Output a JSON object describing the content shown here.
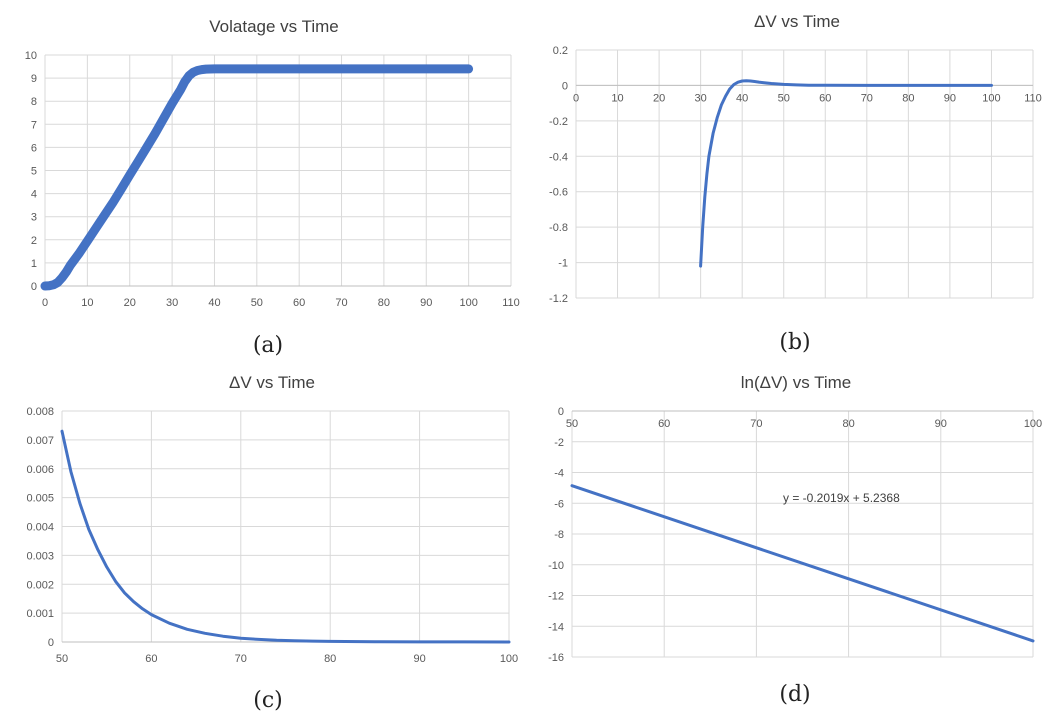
{
  "colors": {
    "series": "#4472c4",
    "grid": "#d9d9d9",
    "text": "#595959"
  },
  "panel_labels": [
    "(a)",
    "(b)",
    "(c)",
    "(d)"
  ],
  "chart_data": [
    {
      "type": "scatter",
      "title": "Volatage vs Time",
      "xlim": [
        0,
        110
      ],
      "ylim": [
        0,
        10
      ],
      "x_ticks": [
        0,
        10,
        20,
        30,
        40,
        50,
        60,
        70,
        80,
        90,
        100,
        110
      ],
      "y_ticks": [
        0,
        1,
        2,
        3,
        4,
        5,
        6,
        7,
        8,
        9,
        10
      ],
      "grid": true,
      "series": [
        {
          "x": [
            0,
            1,
            2,
            3,
            4,
            5,
            6,
            8,
            10,
            12,
            14,
            16,
            18,
            20,
            22,
            24,
            26,
            28,
            30,
            32,
            33,
            34,
            35,
            36,
            37,
            38,
            40,
            45,
            50,
            60,
            70,
            80,
            90,
            100
          ],
          "y": [
            0,
            0.01,
            0.05,
            0.15,
            0.35,
            0.6,
            0.9,
            1.4,
            1.95,
            2.5,
            3.05,
            3.6,
            4.2,
            4.8,
            5.4,
            6.0,
            6.6,
            7.25,
            7.9,
            8.5,
            8.85,
            9.1,
            9.25,
            9.33,
            9.37,
            9.39,
            9.4,
            9.4,
            9.4,
            9.4,
            9.4,
            9.4,
            9.4,
            9.4
          ]
        }
      ]
    },
    {
      "type": "line",
      "title": "ΔV vs Time",
      "xlim": [
        0,
        110
      ],
      "ylim": [
        -1.2,
        0.2
      ],
      "x_ticks": [
        0,
        10,
        20,
        30,
        40,
        50,
        60,
        70,
        80,
        90,
        100,
        110
      ],
      "y_ticks": [
        0.2,
        0,
        -0.2,
        -0.4,
        -0.6,
        -0.8,
        -1,
        -1.2
      ],
      "grid": true,
      "series": [
        {
          "x": [
            30,
            30.5,
            31,
            31.5,
            32,
            33,
            34,
            35,
            36,
            37,
            38,
            39,
            40,
            41,
            42,
            43,
            44,
            45,
            47,
            50,
            53,
            56,
            60,
            70,
            80,
            90,
            100
          ],
          "y": [
            -1.02,
            -0.8,
            -0.63,
            -0.5,
            -0.4,
            -0.27,
            -0.18,
            -0.11,
            -0.06,
            -0.02,
            0.005,
            0.018,
            0.025,
            0.026,
            0.025,
            0.022,
            0.019,
            0.016,
            0.011,
            0.006,
            0.003,
            0.0015,
            0.0005,
            0,
            0,
            0,
            0
          ]
        }
      ]
    },
    {
      "type": "line",
      "title": "ΔV vs Time",
      "xlim": [
        50,
        100
      ],
      "ylim": [
        0,
        0.008
      ],
      "x_ticks": [
        50,
        60,
        70,
        80,
        90,
        100
      ],
      "y_ticks": [
        0.008,
        0.007,
        0.006,
        0.005,
        0.004,
        0.003,
        0.002,
        0.001,
        0
      ],
      "grid": true,
      "series": [
        {
          "x": [
            50,
            51,
            52,
            53,
            54,
            55,
            56,
            57,
            58,
            59,
            60,
            62,
            64,
            66,
            68,
            70,
            72,
            74,
            76,
            78,
            80,
            85,
            90,
            95,
            100
          ],
          "y": [
            0.0073,
            0.0059,
            0.0048,
            0.0039,
            0.0032,
            0.0026,
            0.0021,
            0.0017,
            0.0014,
            0.00115,
            0.00095,
            0.00065,
            0.00044,
            0.0003,
            0.0002,
            0.00013,
            9e-05,
            6e-05,
            4e-05,
            3e-05,
            2e-05,
            1e-05,
            5e-06,
            2e-06,
            0
          ]
        }
      ]
    },
    {
      "type": "line",
      "title": "ln(ΔV) vs Time",
      "xlim": [
        50,
        100
      ],
      "ylim": [
        -16,
        0
      ],
      "x_ticks": [
        50,
        60,
        70,
        80,
        90,
        100
      ],
      "y_ticks": [
        0,
        -2,
        -4,
        -6,
        -8,
        -10,
        -12,
        -14,
        -16
      ],
      "grid": true,
      "annotation": "y = -0.2019x + 5.2368",
      "series": [
        {
          "x": [
            50,
            100
          ],
          "y": [
            -4.86,
            -14.95
          ]
        }
      ]
    }
  ]
}
